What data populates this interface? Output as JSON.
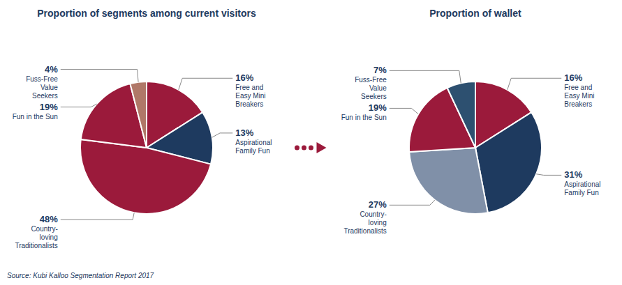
{
  "chart_data": [
    {
      "type": "pie",
      "title": "Proportion of segments among current visitors",
      "categories": [
        "Free and\nEasy Mini\nBreakers",
        "Aspirational\nFamily Fun",
        "Country-\nloving\nTraditionalists",
        "Fun in the Sun",
        "Fuss-Free\nValue\nSeekers"
      ],
      "values": [
        16,
        13,
        48,
        19,
        4
      ],
      "value_labels": [
        "16%",
        "13%",
        "48%",
        "19%",
        "4%"
      ],
      "colors": [
        "#9b1a3b",
        "#1e3a5f",
        "#9b1a3b",
        "#9b1a3b",
        "#b07868"
      ],
      "data_labels": true,
      "annotations": [
        "Source: Kubi Kalloo Segmentation Report 2017"
      ]
    },
    {
      "type": "pie",
      "title": "Proportion of wallet",
      "categories": [
        "Free and\nEasy Mini\nBreakers",
        "Aspirational\nFamily Fun",
        "Country-\nloving\nTraditionalists",
        "Fun in the Sun",
        "Fuss-Free\nValue\nSeekers"
      ],
      "values": [
        16,
        31,
        27,
        19,
        7
      ],
      "value_labels": [
        "16%",
        "31%",
        "27%",
        "19%",
        "7%"
      ],
      "colors": [
        "#9b1a3b",
        "#1e3a5f",
        "#8090a8",
        "#9b1a3b",
        "#2d5070"
      ],
      "data_labels": true
    }
  ]
}
